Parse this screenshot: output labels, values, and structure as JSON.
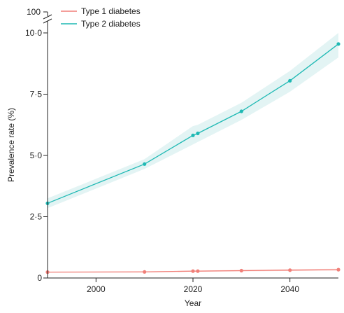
{
  "chart_data": {
    "type": "line",
    "title": "",
    "xlabel": "Year",
    "ylabel": "Prevalence rate (%)",
    "xlim": [
      1990,
      2050
    ],
    "ylim": [
      0,
      10
    ],
    "y_axis_break": {
      "broken": true,
      "top_tick_label": "100"
    },
    "x_ticks": [
      {
        "value": 2000,
        "label": "2000"
      },
      {
        "value": 2020,
        "label": "2020"
      },
      {
        "value": 2040,
        "label": "2040"
      }
    ],
    "y_ticks": [
      {
        "value": 0,
        "label": "0"
      },
      {
        "value": 2.5,
        "label": "2·5"
      },
      {
        "value": 5,
        "label": "5·0"
      },
      {
        "value": 7.5,
        "label": "7·5"
      },
      {
        "value": 10,
        "label": "10·0"
      }
    ],
    "legend_placement": "top-left",
    "series": [
      {
        "name": "Type 1 diabetes",
        "color": "#f07f78",
        "band_color": "#fde4e2",
        "x": [
          1990,
          2010,
          2020,
          2021,
          2030,
          2040,
          2050
        ],
        "y": [
          0.24,
          0.25,
          0.28,
          0.28,
          0.3,
          0.32,
          0.34
        ],
        "lower": [
          0.22,
          0.23,
          0.26,
          0.26,
          0.27,
          0.29,
          0.3
        ],
        "upper": [
          0.26,
          0.27,
          0.3,
          0.3,
          0.33,
          0.36,
          0.38
        ]
      },
      {
        "name": "Type 2 diabetes",
        "color": "#1fb9b4",
        "band_color": "#e3f4f4",
        "x": [
          1990,
          2010,
          2020,
          2021,
          2030,
          2040,
          2050
        ],
        "y": [
          3.05,
          4.65,
          5.82,
          5.9,
          6.8,
          8.05,
          9.55
        ],
        "lower": [
          2.85,
          4.45,
          5.45,
          5.55,
          6.45,
          7.6,
          9.0
        ],
        "upper": [
          3.25,
          4.85,
          6.2,
          6.25,
          7.15,
          8.45,
          10.0
        ]
      }
    ]
  }
}
